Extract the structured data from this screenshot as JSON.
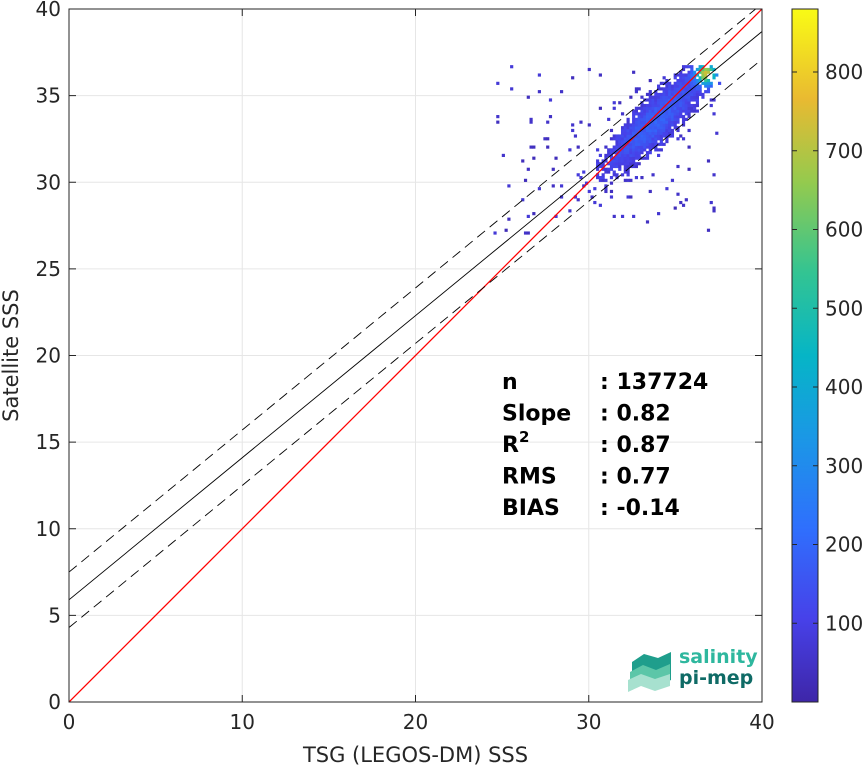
{
  "chart_data": {
    "type": "heatmap",
    "title": "",
    "xlabel": "TSG (LEGOS-DM) SSS",
    "ylabel": "Satellite SSS",
    "xlim": [
      0,
      40
    ],
    "ylim": [
      0,
      40
    ],
    "xticks": [
      "0",
      "10",
      "20",
      "30",
      "40"
    ],
    "yticks": [
      "0",
      "5",
      "10",
      "15",
      "20",
      "25",
      "30",
      "35",
      "40"
    ],
    "grid": true,
    "lines": [
      {
        "name": "one-to-one",
        "color": "#ff0000",
        "style": "solid",
        "x": [
          0,
          40
        ],
        "y": [
          0,
          40
        ]
      },
      {
        "name": "regression-fit",
        "color": "#000000",
        "style": "solid",
        "x": [
          0,
          40
        ],
        "y": [
          5.9,
          38.7
        ]
      },
      {
        "name": "upper-bound",
        "color": "#000000",
        "style": "dashed",
        "x": [
          0,
          40
        ],
        "y": [
          7.5,
          40.3
        ]
      },
      {
        "name": "lower-bound",
        "color": "#000000",
        "style": "dashed",
        "x": [
          0,
          40
        ],
        "y": [
          4.3,
          37.1
        ]
      }
    ],
    "density": {
      "center": [
        33.8,
        33.5
      ],
      "x_range": [
        24.5,
        37.6
      ],
      "y_range": [
        27,
        36.6
      ],
      "peak": [
        36.7,
        36.2
      ],
      "max_count": 880
    },
    "colorbar": {
      "range": [
        0,
        880
      ],
      "ticks": [
        "100",
        "200",
        "300",
        "400",
        "500",
        "600",
        "700",
        "800"
      ],
      "colormap": "parula"
    },
    "stats": [
      {
        "label": "n",
        "sup": "",
        "value": ": 137724"
      },
      {
        "label": "Slope",
        "sup": "",
        "value": ": 0.82"
      },
      {
        "label": "R",
        "sup": "2",
        "value": ": 0.87"
      },
      {
        "label": "RMS",
        "sup": "",
        "value": ": 0.77"
      },
      {
        "label": "BIAS",
        "sup": "",
        "value": ": -0.14"
      }
    ]
  },
  "logo": {
    "line1": "salinity",
    "line2": "pi-mep"
  }
}
